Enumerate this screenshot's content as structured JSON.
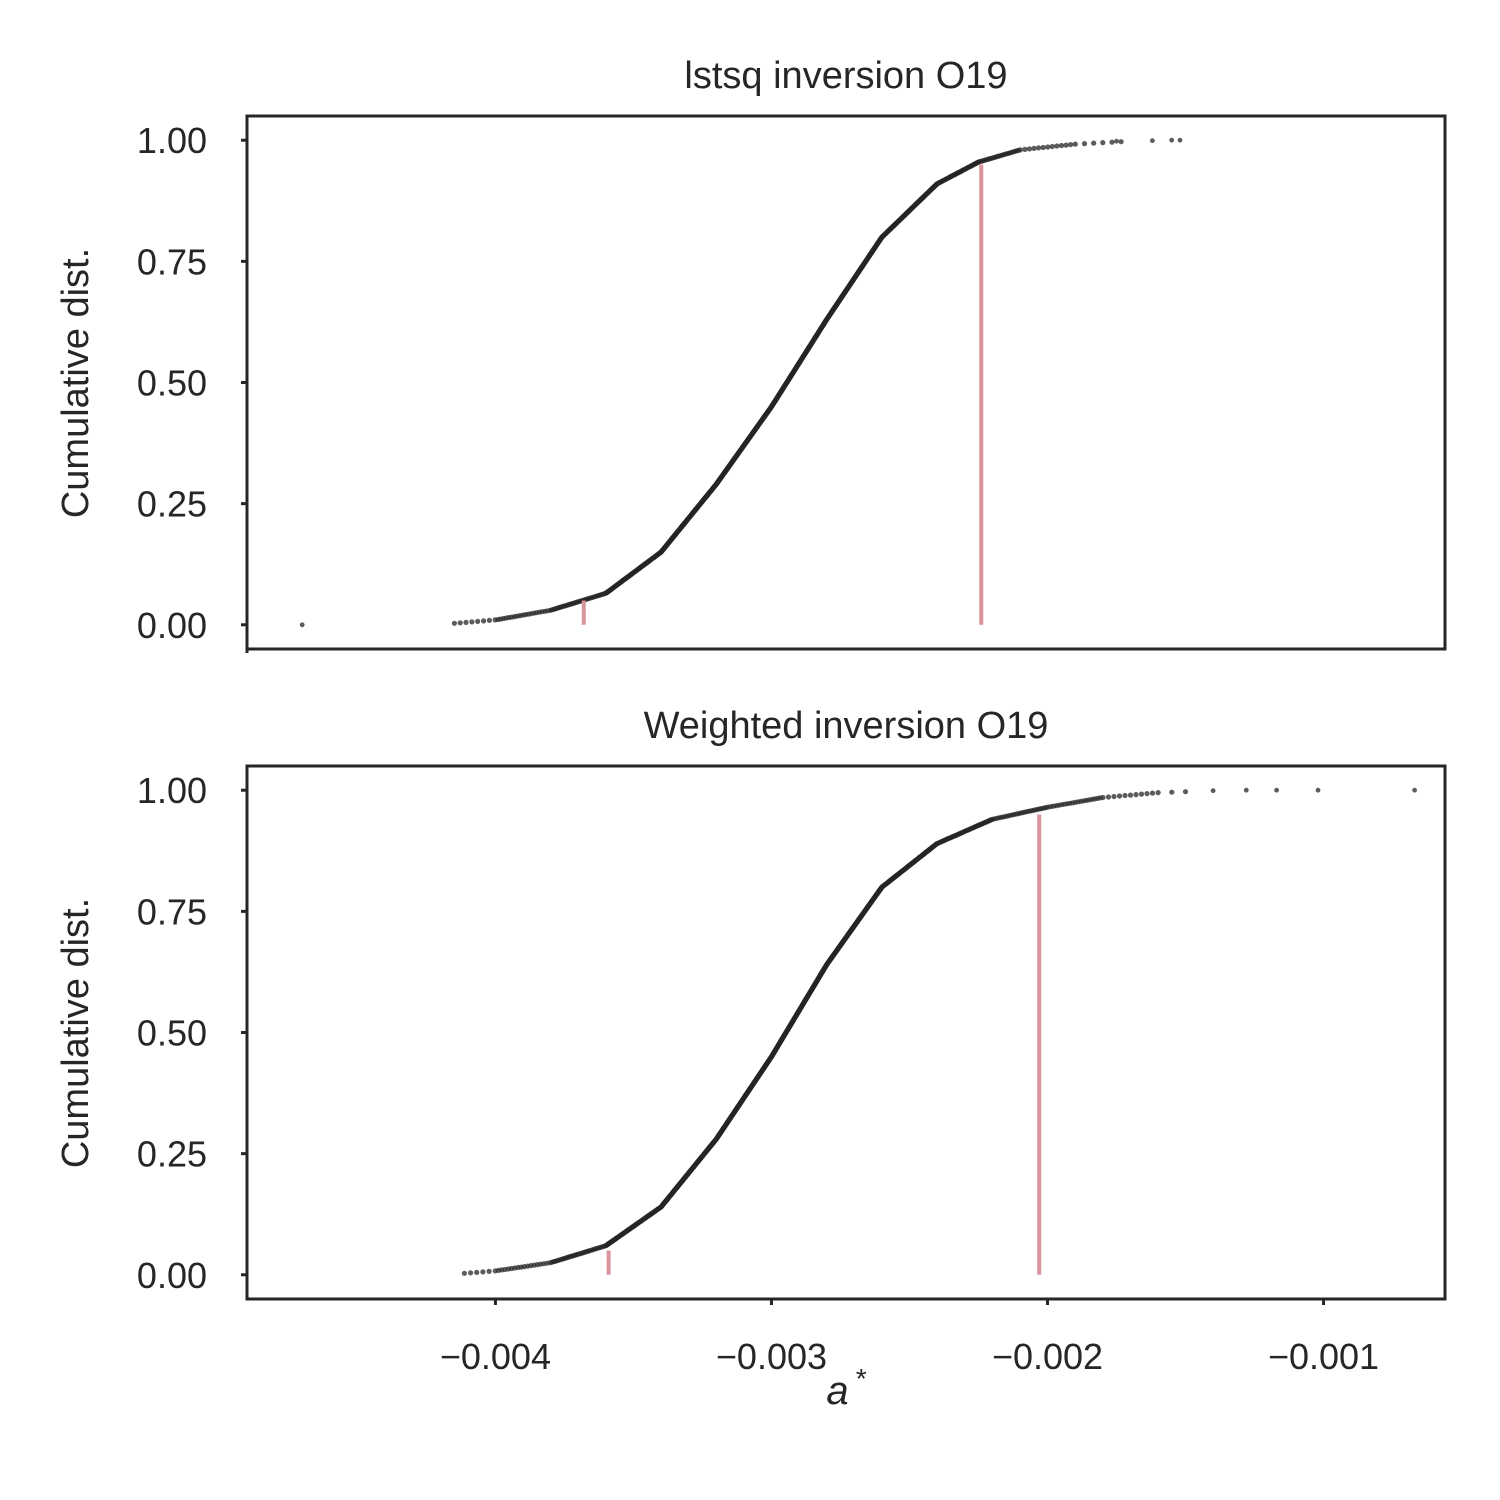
{
  "figure": {
    "shared_xlabel": "a*",
    "shared_xlim": [
      -0.0049,
      -0.00056
    ],
    "shared_xticks": [
      -0.004,
      -0.003,
      -0.002,
      -0.001
    ],
    "shared_xtick_labels": [
      "−0.004",
      "−0.003",
      "−0.002",
      "−0.001"
    ]
  },
  "chart_data": [
    {
      "type": "scatter",
      "title": "lstsq inversion O19",
      "ylabel": "Cumulative dist.",
      "xlabel": "",
      "xlim": [
        -0.0049,
        -0.00056
      ],
      "ylim": [
        -0.05,
        1.05
      ],
      "yticks": [
        0.0,
        0.25,
        0.5,
        0.75,
        1.0
      ],
      "ytick_labels": [
        "0.00",
        "0.25",
        "0.50",
        "0.75",
        "1.00"
      ],
      "grid": false,
      "marker_color": "#262626",
      "line_color": "#d9939b",
      "n_points": 1000,
      "cdf_curve": [
        [
          -0.0047,
          0.0
        ],
        [
          -0.00417,
          0.002
        ],
        [
          -0.004,
          0.01
        ],
        [
          -0.0038,
          0.03
        ],
        [
          -0.0036,
          0.065
        ],
        [
          -0.0034,
          0.15
        ],
        [
          -0.0032,
          0.29
        ],
        [
          -0.003,
          0.45
        ],
        [
          -0.0028,
          0.63
        ],
        [
          -0.0026,
          0.8
        ],
        [
          -0.0024,
          0.91
        ],
        [
          -0.00225,
          0.955
        ],
        [
          -0.0021,
          0.98
        ],
        [
          -0.0019,
          0.992
        ],
        [
          -0.0017,
          0.998
        ],
        [
          -0.00152,
          1.0
        ]
      ],
      "outliers": [
        [
          -0.0047,
          0.0
        ],
        [
          -0.00175,
          0.998
        ],
        [
          -0.00162,
          0.999
        ],
        [
          -0.00155,
          1.0
        ],
        [
          -0.00152,
          1.0
        ]
      ],
      "vlines": [
        {
          "x": -0.00368,
          "ymin": 0.0,
          "ymax": 0.05
        },
        {
          "x": -0.00224,
          "ymin": 0.0,
          "ymax": 0.95
        }
      ]
    },
    {
      "type": "scatter",
      "title": "Weighted inversion O19",
      "ylabel": "Cumulative dist.",
      "xlabel": "a*",
      "xlim": [
        -0.0049,
        -0.00056
      ],
      "ylim": [
        -0.05,
        1.05
      ],
      "yticks": [
        0.0,
        0.25,
        0.5,
        0.75,
        1.0
      ],
      "ytick_labels": [
        "0.00",
        "0.25",
        "0.50",
        "0.75",
        "1.00"
      ],
      "grid": false,
      "marker_color": "#262626",
      "line_color": "#d9939b",
      "n_points": 1000,
      "cdf_curve": [
        [
          -0.00418,
          0.0
        ],
        [
          -0.004,
          0.008
        ],
        [
          -0.0038,
          0.025
        ],
        [
          -0.0036,
          0.06
        ],
        [
          -0.0034,
          0.14
        ],
        [
          -0.0032,
          0.28
        ],
        [
          -0.003,
          0.45
        ],
        [
          -0.0028,
          0.64
        ],
        [
          -0.0026,
          0.8
        ],
        [
          -0.0024,
          0.89
        ],
        [
          -0.0022,
          0.94
        ],
        [
          -0.002,
          0.965
        ],
        [
          -0.0018,
          0.985
        ],
        [
          -0.0016,
          0.995
        ],
        [
          -0.0014,
          0.999
        ],
        [
          -0.00135,
          1.0
        ]
      ],
      "outliers": [
        [
          -0.0014,
          0.999
        ],
        [
          -0.00128,
          1.0
        ],
        [
          -0.00117,
          1.0
        ],
        [
          -0.00102,
          1.0
        ],
        [
          -0.00067,
          1.0
        ]
      ],
      "vlines": [
        {
          "x": -0.00359,
          "ymin": 0.0,
          "ymax": 0.05
        },
        {
          "x": -0.00203,
          "ymin": 0.0,
          "ymax": 0.95
        }
      ]
    }
  ]
}
